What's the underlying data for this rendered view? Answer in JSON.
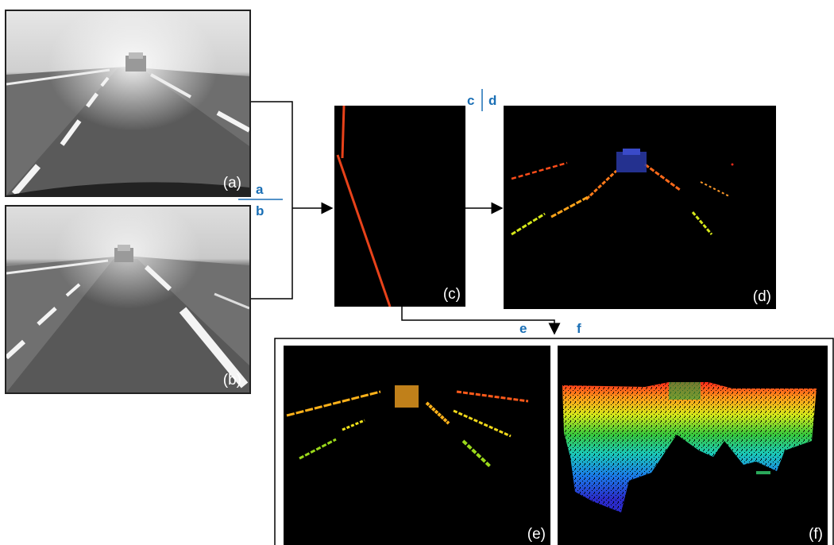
{
  "panels": {
    "a": {
      "label": "(a)"
    },
    "b": {
      "label": "(b)"
    },
    "c": {
      "label": "(c)"
    },
    "d": {
      "label": "(d)"
    },
    "e": {
      "label": "(e)"
    },
    "f": {
      "label": "(f)"
    }
  },
  "legend_keys": {
    "a": "a",
    "b": "b",
    "c": "c",
    "d": "d",
    "e": "e",
    "f": "f"
  },
  "colors": {
    "accent_blue": "#1a6fb5",
    "line_red": "#e8421a",
    "connector": "#000000"
  }
}
